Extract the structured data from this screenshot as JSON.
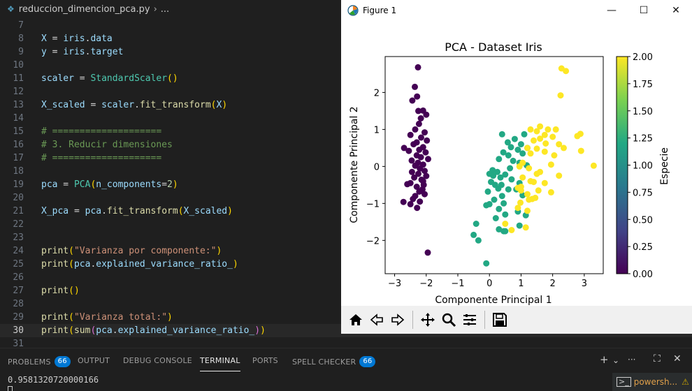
{
  "breadcrumb": {
    "file": "reduccion_dimencion_pca.py",
    "rest": "..."
  },
  "editor": {
    "current_line": 30,
    "lines": [
      {
        "n": "7",
        "t": []
      },
      {
        "n": "8",
        "t": [
          [
            "var",
            "X"
          ],
          [
            "op",
            " = "
          ],
          [
            "var",
            "iris"
          ],
          [
            "op",
            "."
          ],
          [
            "var",
            "data"
          ]
        ]
      },
      {
        "n": "9",
        "t": [
          [
            "var",
            "y"
          ],
          [
            "op",
            " = "
          ],
          [
            "var",
            "iris"
          ],
          [
            "op",
            "."
          ],
          [
            "var",
            "target"
          ]
        ]
      },
      {
        "n": "10",
        "t": []
      },
      {
        "n": "11",
        "t": [
          [
            "var",
            "scaler"
          ],
          [
            "op",
            " = "
          ],
          [
            "cls",
            "StandardScaler"
          ],
          [
            "p1",
            "()"
          ]
        ]
      },
      {
        "n": "12",
        "t": []
      },
      {
        "n": "13",
        "t": [
          [
            "var",
            "X_scaled"
          ],
          [
            "op",
            " = "
          ],
          [
            "var",
            "scaler"
          ],
          [
            "op",
            "."
          ],
          [
            "fn",
            "fit_transform"
          ],
          [
            "p1",
            "("
          ],
          [
            "var",
            "X"
          ],
          [
            "p1",
            ")"
          ]
        ]
      },
      {
        "n": "14",
        "t": []
      },
      {
        "n": "15",
        "t": [
          [
            "com",
            "# ===================="
          ]
        ]
      },
      {
        "n": "16",
        "t": [
          [
            "com",
            "# 3. Reducir dimensiones"
          ]
        ]
      },
      {
        "n": "17",
        "t": [
          [
            "com",
            "# ===================="
          ]
        ]
      },
      {
        "n": "18",
        "t": []
      },
      {
        "n": "19",
        "t": [
          [
            "var",
            "pca"
          ],
          [
            "op",
            " = "
          ],
          [
            "cls",
            "PCA"
          ],
          [
            "p1",
            "("
          ],
          [
            "var",
            "n_components"
          ],
          [
            "op",
            "="
          ],
          [
            "num",
            "2"
          ],
          [
            "p1",
            ")"
          ]
        ]
      },
      {
        "n": "20",
        "t": []
      },
      {
        "n": "21",
        "t": [
          [
            "var",
            "X_pca"
          ],
          [
            "op",
            " = "
          ],
          [
            "var",
            "pca"
          ],
          [
            "op",
            "."
          ],
          [
            "fn",
            "fit_transform"
          ],
          [
            "p1",
            "("
          ],
          [
            "var",
            "X_scaled"
          ],
          [
            "p1",
            ")"
          ]
        ]
      },
      {
        "n": "22",
        "t": []
      },
      {
        "n": "23",
        "t": []
      },
      {
        "n": "24",
        "t": [
          [
            "fn",
            "print"
          ],
          [
            "p1",
            "("
          ],
          [
            "str",
            "\"Varianza por componente:\""
          ],
          [
            "p1",
            ")"
          ]
        ]
      },
      {
        "n": "25",
        "t": [
          [
            "fn",
            "print"
          ],
          [
            "p1",
            "("
          ],
          [
            "var",
            "pca"
          ],
          [
            "op",
            "."
          ],
          [
            "var",
            "explained_variance_ratio_"
          ],
          [
            "p1",
            ")"
          ]
        ]
      },
      {
        "n": "26",
        "t": []
      },
      {
        "n": "27",
        "t": [
          [
            "fn",
            "print"
          ],
          [
            "p1",
            "()"
          ]
        ]
      },
      {
        "n": "28",
        "t": []
      },
      {
        "n": "29",
        "t": [
          [
            "fn",
            "print"
          ],
          [
            "p1",
            "("
          ],
          [
            "str",
            "\"Varianza total:\""
          ],
          [
            "p1",
            ")"
          ]
        ]
      },
      {
        "n": "30",
        "t": [
          [
            "fn",
            "print"
          ],
          [
            "p1",
            "("
          ],
          [
            "fn",
            "sum"
          ],
          [
            "p2",
            "("
          ],
          [
            "var",
            "pca"
          ],
          [
            "op",
            "."
          ],
          [
            "var",
            "explained_variance_ratio_"
          ],
          [
            "p2",
            ")"
          ],
          [
            "p1",
            ")"
          ]
        ]
      },
      {
        "n": "31",
        "t": []
      }
    ]
  },
  "figure": {
    "window_title": "Figure 1",
    "controls": {
      "minimize": "—",
      "maximize": "☐",
      "close": "✕"
    },
    "toolbar_icons": [
      "home-icon",
      "back-icon",
      "forward-icon",
      "pan-icon",
      "zoom-icon",
      "configure-icon",
      "save-icon"
    ]
  },
  "chart_data": {
    "type": "scatter",
    "title": "PCA - Dataset Iris",
    "xlabel": "Componente Principal 1",
    "ylabel": "Componente Principal 2",
    "xlim": [
      -3.3,
      3.6
    ],
    "ylim": [
      -2.9,
      2.97
    ],
    "xticks": [
      -3,
      -2,
      -1,
      0,
      1,
      2,
      3
    ],
    "yticks": [
      -2,
      -1,
      0,
      1,
      2
    ],
    "colorbar": {
      "label": "Especie",
      "min": 0.0,
      "max": 2.0,
      "ticks": [
        "0.00",
        "0.25",
        "0.50",
        "0.75",
        "1.00",
        "1.25",
        "1.50",
        "1.75",
        "2.00"
      ],
      "colormap": [
        "#440154",
        "#414487",
        "#2a788e",
        "#22a884",
        "#7ad151",
        "#fde725"
      ]
    },
    "grid": false,
    "series": [
      {
        "class": 0,
        "color": "#440154",
        "points": [
          [
            -2.26,
            2.68
          ],
          [
            -2.36,
            2.15
          ],
          [
            -2.29,
            1.89
          ],
          [
            -2.44,
            1.78
          ],
          [
            -2.1,
            1.51
          ],
          [
            -2.25,
            1.5
          ],
          [
            -2.0,
            1.4
          ],
          [
            -2.17,
            1.3
          ],
          [
            -2.23,
            1.15
          ],
          [
            -2.35,
            1.0
          ],
          [
            -2.05,
            0.92
          ],
          [
            -2.5,
            0.85
          ],
          [
            -2.16,
            0.78
          ],
          [
            -1.98,
            0.7
          ],
          [
            -2.3,
            0.65
          ],
          [
            -2.4,
            0.6
          ],
          [
            -2.1,
            0.52
          ],
          [
            -2.22,
            0.45
          ],
          [
            -2.55,
            0.42
          ],
          [
            -2.02,
            0.38
          ],
          [
            -2.3,
            0.3
          ],
          [
            -2.17,
            0.25
          ],
          [
            -1.94,
            0.2
          ],
          [
            -2.46,
            0.16
          ],
          [
            -2.26,
            0.1
          ],
          [
            -2.7,
            0.5
          ],
          [
            -2.1,
            0.05
          ],
          [
            -2.35,
            0.02
          ],
          [
            -2.2,
            -0.06
          ],
          [
            -2.05,
            -0.12
          ],
          [
            -2.45,
            -0.15
          ],
          [
            -2.25,
            -0.2
          ],
          [
            -2.0,
            -0.26
          ],
          [
            -2.38,
            -0.3
          ],
          [
            -2.15,
            -0.36
          ],
          [
            -2.5,
            -0.45
          ],
          [
            -2.08,
            -0.5
          ],
          [
            -2.3,
            -0.55
          ],
          [
            -2.6,
            -0.48
          ],
          [
            -2.12,
            -0.62
          ],
          [
            -2.22,
            -0.68
          ],
          [
            -2.05,
            -0.75
          ],
          [
            -2.35,
            -0.8
          ],
          [
            -2.42,
            -0.88
          ],
          [
            -2.2,
            -0.95
          ],
          [
            -2.72,
            -0.96
          ],
          [
            -2.5,
            -1.02
          ],
          [
            -2.29,
            -1.12
          ],
          [
            -2.1,
            -0.4
          ],
          [
            -1.95,
            -2.33
          ]
        ]
      },
      {
        "class": 1,
        "color": "#22a884",
        "points": [
          [
            0.4,
            0.87
          ],
          [
            1.1,
            0.87
          ],
          [
            0.8,
            0.74
          ],
          [
            0.58,
            0.65
          ],
          [
            1.0,
            0.6
          ],
          [
            0.68,
            0.52
          ],
          [
            1.2,
            0.5
          ],
          [
            0.9,
            0.45
          ],
          [
            0.44,
            0.38
          ],
          [
            0.6,
            0.3
          ],
          [
            1.05,
            0.35
          ],
          [
            0.3,
            0.2
          ],
          [
            0.75,
            0.15
          ],
          [
            0.95,
            0.1
          ],
          [
            0.1,
            -0.1
          ],
          [
            0.25,
            -0.15
          ],
          [
            0.5,
            -0.22
          ],
          [
            0.0,
            -0.2
          ],
          [
            0.35,
            -0.3
          ],
          [
            0.7,
            -0.35
          ],
          [
            0.05,
            -0.42
          ],
          [
            0.18,
            -0.5
          ],
          [
            0.95,
            -0.45
          ],
          [
            0.28,
            -0.6
          ],
          [
            0.6,
            -0.62
          ],
          [
            -0.05,
            -0.68
          ],
          [
            0.4,
            -0.8
          ],
          [
            1.05,
            -0.78
          ],
          [
            0.15,
            -0.9
          ],
          [
            0.45,
            -1.0
          ],
          [
            -0.1,
            -1.05
          ],
          [
            0.0,
            -1.02
          ],
          [
            0.3,
            -1.15
          ],
          [
            0.9,
            -1.22
          ],
          [
            0.5,
            -1.3
          ],
          [
            0.2,
            -1.4
          ],
          [
            1.15,
            -1.32
          ],
          [
            0.95,
            -1.6
          ],
          [
            -0.42,
            -1.55
          ],
          [
            0.5,
            -1.75
          ],
          [
            0.3,
            -1.7
          ],
          [
            0.45,
            -1.75
          ],
          [
            -0.5,
            -1.85
          ],
          [
            -0.35,
            -2.0
          ],
          [
            -0.1,
            -2.62
          ],
          [
            0.85,
            -0.62
          ],
          [
            0.12,
            -0.25
          ],
          [
            0.65,
            -0.05
          ],
          [
            1.18,
            0.03
          ],
          [
            0.38,
            -0.5
          ]
        ]
      },
      {
        "class": 2,
        "color": "#fde725",
        "points": [
          [
            2.28,
            2.65
          ],
          [
            2.42,
            2.58
          ],
          [
            2.25,
            1.92
          ],
          [
            1.6,
            1.08
          ],
          [
            1.85,
            1.0
          ],
          [
            1.3,
            1.0
          ],
          [
            2.1,
            1.0
          ],
          [
            1.5,
            0.95
          ],
          [
            2.88,
            0.88
          ],
          [
            2.78,
            0.82
          ],
          [
            1.75,
            0.85
          ],
          [
            2.0,
            0.8
          ],
          [
            1.4,
            0.7
          ],
          [
            1.6,
            0.75
          ],
          [
            1.78,
            0.62
          ],
          [
            2.2,
            0.6
          ],
          [
            1.2,
            0.5
          ],
          [
            1.5,
            0.48
          ],
          [
            2.35,
            0.5
          ],
          [
            2.9,
            0.42
          ],
          [
            1.75,
            0.4
          ],
          [
            1.3,
            0.35
          ],
          [
            2.05,
            0.3
          ],
          [
            1.05,
            0.1
          ],
          [
            1.95,
            0.05
          ],
          [
            1.25,
            -0.05
          ],
          [
            0.95,
            0.0
          ],
          [
            1.6,
            -0.15
          ],
          [
            3.3,
            0.02
          ],
          [
            1.5,
            -0.2
          ],
          [
            2.2,
            -0.25
          ],
          [
            1.05,
            -0.3
          ],
          [
            1.4,
            -0.42
          ],
          [
            1.75,
            -0.45
          ],
          [
            1.0,
            -0.55
          ],
          [
            1.55,
            -0.65
          ],
          [
            1.95,
            -0.7
          ],
          [
            1.2,
            -0.75
          ],
          [
            1.0,
            -0.65
          ],
          [
            0.9,
            -0.58
          ],
          [
            1.35,
            -0.88
          ],
          [
            1.25,
            -0.9
          ],
          [
            1.45,
            -0.85
          ],
          [
            0.98,
            -0.98
          ],
          [
            0.9,
            -1.12
          ],
          [
            1.2,
            -1.2
          ],
          [
            0.5,
            -1.55
          ],
          [
            1.15,
            -1.65
          ],
          [
            0.7,
            -1.72
          ],
          [
            1.3,
            -0.4
          ]
        ]
      }
    ]
  },
  "panel": {
    "tabs": [
      {
        "id": "problems",
        "label": "PROBLEMS",
        "badge": "66"
      },
      {
        "id": "output",
        "label": "OUTPUT"
      },
      {
        "id": "debug",
        "label": "DEBUG CONSOLE"
      },
      {
        "id": "terminal",
        "label": "TERMINAL",
        "active": true
      },
      {
        "id": "ports",
        "label": "PORTS"
      },
      {
        "id": "spell",
        "label": "SPELL CHECKER",
        "badge": "66"
      }
    ],
    "actions": {
      "add": "+",
      "dropdown": "⌄",
      "more": "···",
      "maximize": "⛶",
      "close": "✕"
    }
  },
  "terminal": {
    "output": "0.9581320720000166",
    "session_label": "powersh...",
    "warning_icon": "⚠"
  }
}
